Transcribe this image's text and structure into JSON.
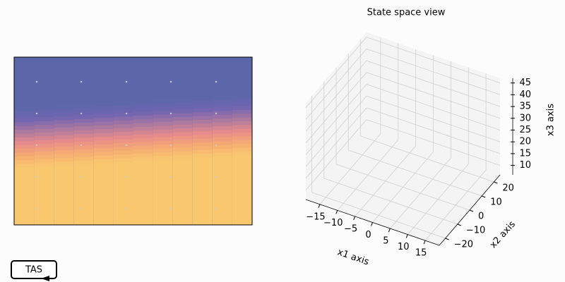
{
  "chart_data": [
    {
      "type": "image"
    },
    {
      "type": "axes3d",
      "title": "State space view",
      "xlabel": "x1 axis",
      "ylabel": "x2 axis",
      "zlabel": "x3 axis",
      "xlim": [
        -19,
        19
      ],
      "ylim": [
        -25,
        25
      ],
      "zlim": [
        6,
        47
      ],
      "xticks": [
        {
          "value": -15,
          "label": "−15"
        },
        {
          "value": -10,
          "label": "−10"
        },
        {
          "value": -5,
          "label": "−5"
        },
        0,
        5,
        10,
        15
      ],
      "yticks": [
        {
          "value": -20,
          "label": "−20"
        },
        {
          "value": -10,
          "label": "−10"
        },
        0,
        10,
        20
      ],
      "zticks": [
        10,
        15,
        20,
        25,
        30,
        35,
        40,
        45
      ],
      "grid": true
    }
  ],
  "button": {
    "label": "TAS"
  }
}
